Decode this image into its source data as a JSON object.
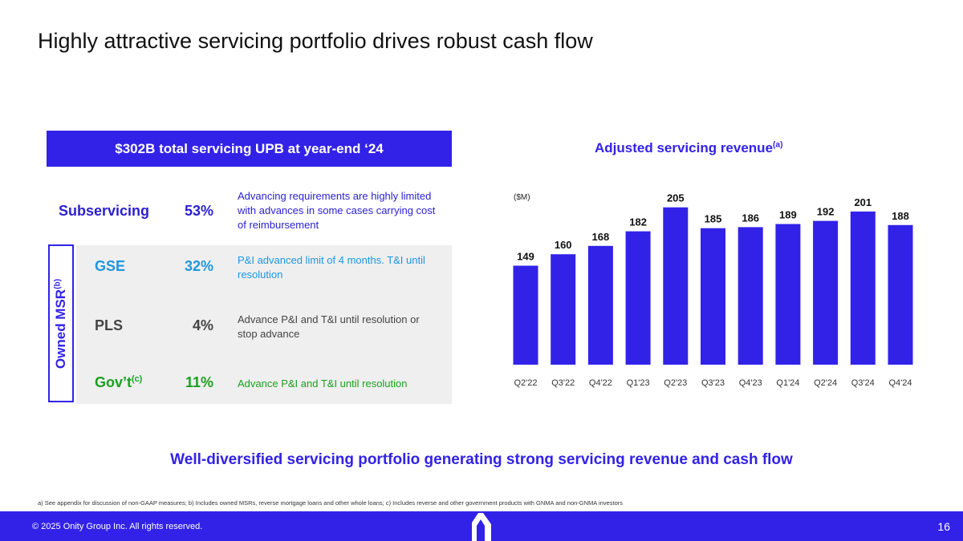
{
  "title": "Highly attractive servicing portfolio drives robust cash flow",
  "banner": "$302B total servicing UPB at year-end ‘24",
  "owned_msr": {
    "label": "Owned MSR",
    "sup": "(b)"
  },
  "rows": [
    {
      "label": "Subservicing",
      "sup": "",
      "pct": "53%",
      "desc": "Advancing requirements are highly limited with advances in some cases carrying cost of reimbursement",
      "color": "#2a1fd0"
    },
    {
      "label": "GSE",
      "sup": "",
      "pct": "32%",
      "desc": "P&I advanced limit of 4 months. T&I until resolution",
      "color": "#1e96e0"
    },
    {
      "label": "PLS",
      "sup": "",
      "pct": "4%",
      "desc": "Advance P&I and T&I until resolution or stop advance",
      "color": "#444444"
    },
    {
      "label": "Gov’t",
      "sup": "(c)",
      "pct": "11%",
      "desc": "Advance P&I and T&I until resolution",
      "color": "#1aa020"
    }
  ],
  "chart_data": {
    "type": "bar",
    "title": "Adjusted servicing revenue",
    "title_sup": "(a)",
    "unit_label": "($M)",
    "categories": [
      "Q2'22",
      "Q3'22",
      "Q4'22",
      "Q1'23",
      "Q2'23",
      "Q3'23",
      "Q4'23",
      "Q1'24",
      "Q2'24",
      "Q3'24",
      "Q4'24"
    ],
    "values": [
      149,
      160,
      168,
      182,
      205,
      185,
      186,
      189,
      192,
      201,
      188
    ],
    "bar_color": "#3222e8",
    "grid": false
  },
  "bottom_text": "Well-diversified servicing portfolio generating strong servicing revenue and cash flow",
  "footnotes": "a) See appendix for discussion of non-GAAP measures; b) Includes owned MSRs, reverse mortgage loans and other whole loans; c) Includes reverse and other government products with GNMA and non-GNMA investors",
  "footer": {
    "copyright": "© 2025 Onity Group Inc. All rights reserved.",
    "page": "16"
  }
}
